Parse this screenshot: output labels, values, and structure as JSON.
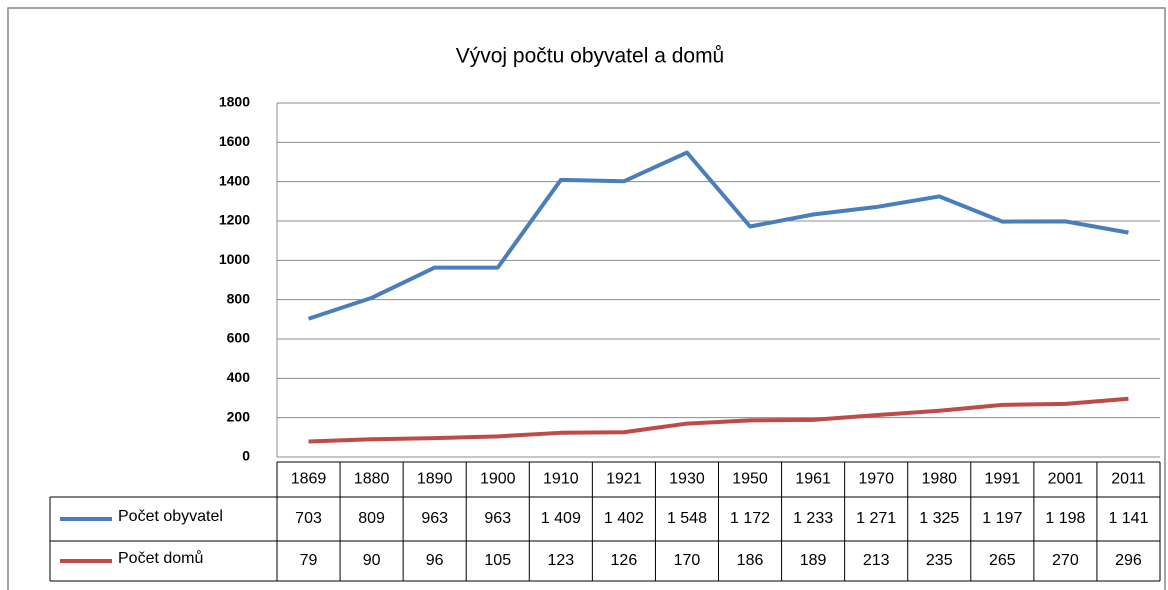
{
  "chart_data": {
    "type": "line",
    "title": "Vývoj počtu obyvatel a domů",
    "categories": [
      "1869",
      "1880",
      "1890",
      "1900",
      "1910",
      "1921",
      "1930",
      "1950",
      "1961",
      "1970",
      "1980",
      "1991",
      "2001",
      "2011"
    ],
    "series": [
      {
        "name": "Počet obyvatel",
        "color": "#4a7ebb",
        "values": [
          703,
          809,
          963,
          963,
          1409,
          1402,
          1548,
          1172,
          1233,
          1271,
          1325,
          1197,
          1198,
          1141
        ],
        "value_labels": [
          "703",
          "809",
          "963",
          "963",
          "1 409",
          "1 402",
          "1 548",
          "1 172",
          "1 233",
          "1 271",
          "1 325",
          "1 197",
          "1 198",
          "1 141"
        ]
      },
      {
        "name": "Počet domů",
        "color": "#be4b48",
        "values": [
          79,
          90,
          96,
          105,
          123,
          126,
          170,
          186,
          189,
          213,
          235,
          265,
          270,
          296
        ]
      }
    ],
    "ylim": [
      0,
      1800
    ],
    "yticks": [
      0,
      200,
      400,
      600,
      800,
      1000,
      1200,
      1400,
      1600,
      1800
    ],
    "grid": true
  }
}
